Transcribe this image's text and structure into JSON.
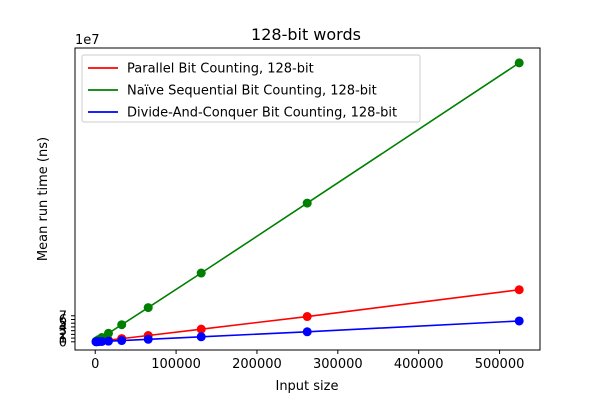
{
  "chart_data": {
    "type": "line",
    "title": "128-bit words",
    "xlabel": "Input size",
    "ylabel": "Mean run time (ns)",
    "y_offset_label": "1e7",
    "xlim": [
      -25000,
      550000
    ],
    "ylim": [
      -2.2,
      79
    ],
    "x_ticks": [
      0,
      100000,
      200000,
      300000,
      400000,
      500000
    ],
    "x_tick_labels": [
      "0",
      "100000",
      "200000",
      "300000",
      "400000",
      "500000"
    ],
    "y_ticks": [
      0,
      1,
      2,
      3,
      4,
      5,
      6,
      7
    ],
    "y_tick_labels": [
      "0",
      "1",
      "2",
      "3",
      "4",
      "5",
      "6",
      "7"
    ],
    "y_unit": "1e7 ns",
    "grid": false,
    "legend_position": "top-left",
    "x": [
      1024,
      2048,
      4096,
      8192,
      16384,
      32768,
      65536,
      131072,
      262144,
      524288
    ],
    "series": [
      {
        "name": "Parallel Bit Counting, 128-bit",
        "color": "#ff0000",
        "values": [
          0.03,
          0.05,
          0.11,
          0.21,
          0.43,
          0.86,
          1.7,
          3.4,
          6.8,
          14.0
        ]
      },
      {
        "name": "Naïve Sequential Bit Counting, 128-bit",
        "color": "#008000",
        "values": [
          0.15,
          0.29,
          0.58,
          1.16,
          2.3,
          4.6,
          9.2,
          18.5,
          37.3,
          75.0
        ]
      },
      {
        "name": "Divide-And-Conquer Bit Counting, 128-bit",
        "color": "#0000ff",
        "values": [
          0.01,
          0.02,
          0.04,
          0.09,
          0.17,
          0.34,
          0.68,
          1.35,
          2.7,
          5.6
        ]
      }
    ]
  }
}
